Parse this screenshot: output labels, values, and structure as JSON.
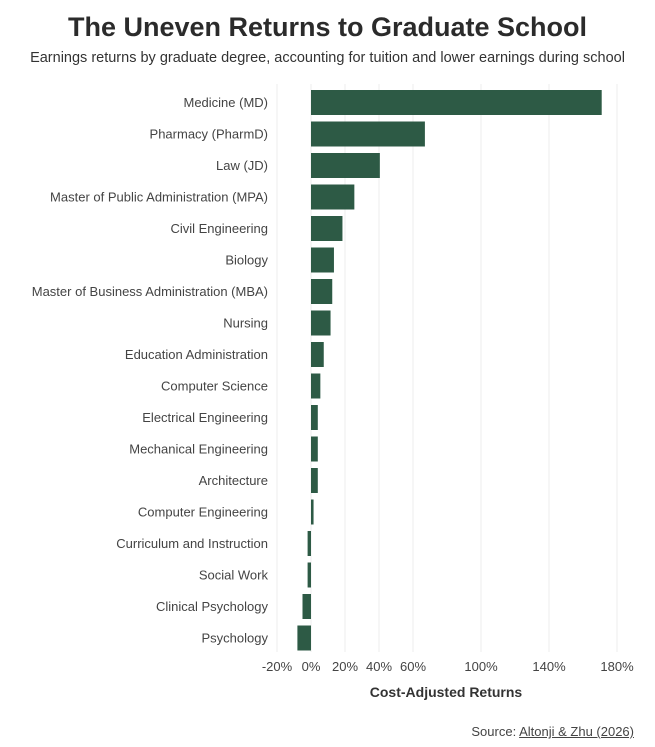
{
  "chart_data": {
    "type": "bar",
    "orientation": "horizontal",
    "title": "The Uneven Returns to Graduate School",
    "subtitle": "Earnings returns by graduate degree, accounting for tuition and lower earnings during school",
    "xlabel": "Cost-Adjusted Returns",
    "ylabel": "",
    "xlim": [
      -20,
      185
    ],
    "xticks": [
      -20,
      0,
      20,
      40,
      60,
      100,
      140,
      180
    ],
    "xtick_labels": [
      "-20%",
      "0%",
      "20%",
      "40%",
      "60%",
      "100%",
      "140%",
      "180%"
    ],
    "grid": "vertical",
    "bar_color": "#2d5a45",
    "categories": [
      "Medicine (MD)",
      "Pharmacy (PharmD)",
      "Law (JD)",
      "Master of Public Administration (MPA)",
      "Civil Engineering",
      "Biology",
      "Master of Business Administration (MBA)",
      "Nursing",
      "Education Administration",
      "Computer Science",
      "Electrical Engineering",
      "Mechanical Engineering",
      "Architecture",
      "Computer Engineering",
      "Curriculum and Instruction",
      "Social Work",
      "Clinical Psychology",
      "Psychology"
    ],
    "values": [
      171,
      67,
      40.5,
      25.5,
      18.5,
      13.5,
      12.5,
      11.5,
      7.5,
      5.5,
      4,
      4,
      4,
      1.5,
      -2,
      -2,
      -5,
      -8
    ]
  },
  "source": {
    "prefix": "Source: ",
    "link_text": "Altonji & Zhu (2026)"
  }
}
